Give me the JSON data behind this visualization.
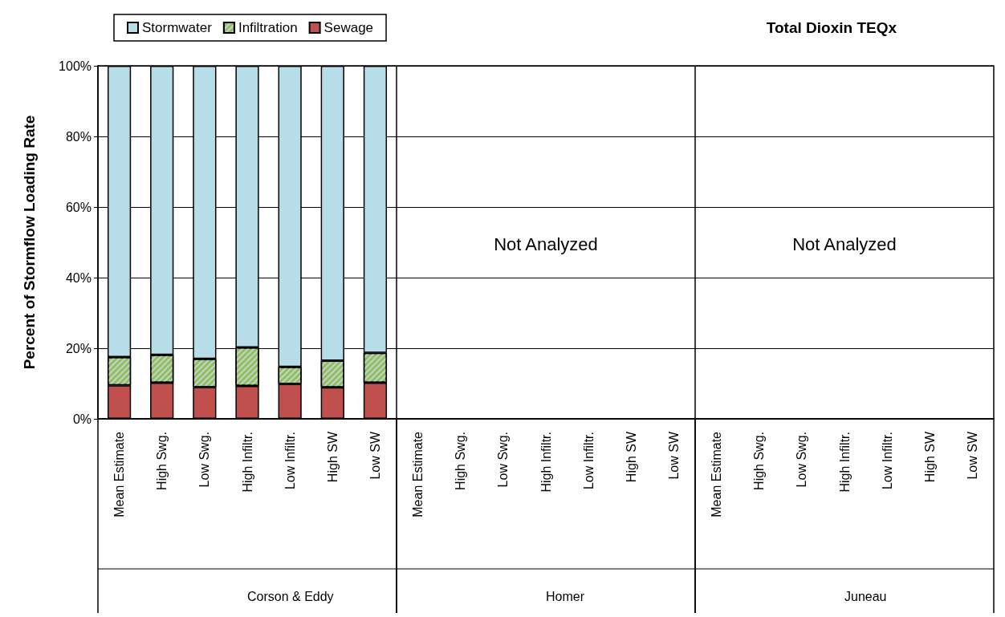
{
  "chart_data": {
    "type": "bar",
    "title": "Total Dioxin TEQx",
    "ylabel": "Percent of Stormflow Loading Rate",
    "categories": [
      "Mean Estimate",
      "High Swg.",
      "Low Swg.",
      "High Infiltr.",
      "Low Infiltr.",
      "High SW",
      "Low SW",
      "Mean Estimate",
      "High Swg.",
      "Low Swg.",
      "High Infiltr.",
      "Low Infiltr.",
      "High SW",
      "Low SW",
      "Mean Estimate",
      "High Swg.",
      "Low Swg.",
      "High Infiltr.",
      "Low Infiltr.",
      "High SW",
      "Low SW"
    ],
    "stacked": true,
    "series": [
      {
        "name": "Sewage",
        "color": "#c0504d",
        "values": [
          9.5,
          10.2,
          9.0,
          9.3,
          9.9,
          8.9,
          10.2,
          null,
          null,
          null,
          null,
          null,
          null,
          null,
          null,
          null,
          null,
          null,
          null,
          null,
          null
        ]
      },
      {
        "name": "Infiltration",
        "color": "#9bbb59",
        "values": [
          8.0,
          7.9,
          8.0,
          10.9,
          4.8,
          7.6,
          8.5,
          null,
          null,
          null,
          null,
          null,
          null,
          null,
          null,
          null,
          null,
          null,
          null,
          null,
          null
        ]
      },
      {
        "name": "Stormwater",
        "color": "#b7dee8",
        "values": [
          82.5,
          81.9,
          83.0,
          79.8,
          85.3,
          83.5,
          81.3,
          null,
          null,
          null,
          null,
          null,
          null,
          null,
          null,
          null,
          null,
          null,
          null,
          null,
          null
        ]
      }
    ],
    "ylim": [
      0,
      100
    ],
    "yticks": [
      {
        "value": 0,
        "label": "0%"
      },
      {
        "value": 20,
        "label": "20%"
      },
      {
        "value": 40,
        "label": "40%"
      },
      {
        "value": 60,
        "label": "60%"
      },
      {
        "value": 80,
        "label": "80%"
      },
      {
        "value": 100,
        "label": "100%"
      }
    ],
    "grid": "y",
    "legend": "top left",
    "annotations": [
      "Corson & Eddy",
      "Homer",
      "Juneau",
      "Not Analyzed",
      "Not Analyzed"
    ]
  }
}
